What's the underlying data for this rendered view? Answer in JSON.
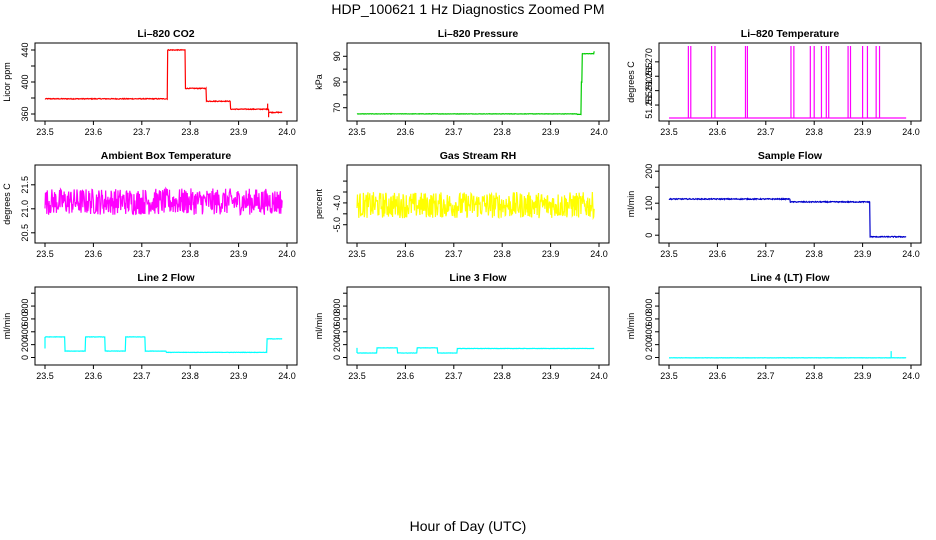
{
  "page": {
    "title": "HDP_100621  1 Hz Diagnostics Zoomed PM",
    "xlabel": "Hour of Day (UTC)"
  },
  "chart_data": [
    {
      "id": "co2",
      "type": "line",
      "title": "Li–820 CO2",
      "ylabel": "Licor ppm",
      "color": "#ff0000",
      "xlim": [
        23.5,
        24.0
      ],
      "ylim": [
        355,
        445
      ],
      "xticks": [
        23.5,
        23.6,
        23.7,
        23.8,
        23.9,
        24.0
      ],
      "xtick_labels": [
        "23.5",
        "23.6",
        "23.7",
        "23.8",
        "23.9",
        "24.0"
      ],
      "yticks": [
        360,
        400,
        440
      ],
      "ytick_labels": [
        "360",
        "400",
        "440"
      ],
      "minor_yticks": [
        380,
        420
      ],
      "noise": 1.0,
      "steps": [
        [
          23.5,
          379
        ],
        [
          23.753,
          440
        ],
        [
          23.79,
          392
        ],
        [
          23.833,
          376
        ],
        [
          23.883,
          366
        ],
        [
          23.962,
          362
        ],
        [
          23.99,
          362
        ]
      ],
      "spikes": [
        [
          23.96,
          373
        ],
        [
          23.962,
          356
        ]
      ]
    },
    {
      "id": "pressure",
      "type": "line",
      "title": "Li–820 Pressure",
      "ylabel": "kPa",
      "color": "#00cc00",
      "xlim": [
        23.5,
        24.0
      ],
      "ylim": [
        66,
        94
      ],
      "xticks": [
        23.5,
        23.6,
        23.7,
        23.8,
        23.9,
        24.0
      ],
      "xtick_labels": [
        "23.5",
        "23.6",
        "23.7",
        "23.8",
        "23.9",
        "24.0"
      ],
      "yticks": [
        70,
        80,
        90
      ],
      "ytick_labels": [
        "70",
        "80",
        "90"
      ],
      "minor_yticks": [
        75,
        85
      ],
      "noise": 0.15,
      "steps": [
        [
          23.5,
          67.6
        ],
        [
          23.955,
          67.4
        ],
        [
          23.963,
          80
        ],
        [
          23.965,
          91
        ],
        [
          23.99,
          92
        ]
      ],
      "spikes": []
    },
    {
      "id": "licor_temp",
      "type": "line",
      "title": "Li–820 Temperature",
      "ylabel": "degrees C",
      "color": "#ff00ff",
      "xlim": [
        23.5,
        24.0
      ],
      "ylim": [
        51.2505,
        51.2755
      ],
      "xticks": [
        23.5,
        23.6,
        23.7,
        23.8,
        23.9,
        24.0
      ],
      "xtick_labels": [
        "23.5",
        "23.6",
        "23.7",
        "23.8",
        "23.9",
        "24.0"
      ],
      "yticks": [
        51.255,
        51.26,
        51.265,
        51.27
      ],
      "ytick_labels": [
        "51.255",
        "51.260",
        "51.265",
        "51.270"
      ],
      "minor_yticks": [],
      "noise": 0,
      "baseline": 51.2505,
      "spike_top": 51.2755,
      "spike_times": [
        23.54,
        23.545,
        23.588,
        23.595,
        23.658,
        23.662,
        23.752,
        23.758,
        23.792,
        23.8,
        23.815,
        23.825,
        23.83,
        23.87,
        23.875,
        23.9,
        23.91,
        23.928,
        23.935
      ],
      "steps": [],
      "spikes": []
    },
    {
      "id": "box_temp",
      "type": "line",
      "title": "Ambient Box Temperature",
      "ylabel": "degrees C",
      "color": "#ff00ff",
      "xlim": [
        23.5,
        24.0
      ],
      "ylim": [
        20.35,
        21.85
      ],
      "xticks": [
        23.5,
        23.6,
        23.7,
        23.8,
        23.9,
        24.0
      ],
      "xtick_labels": [
        "23.5",
        "23.6",
        "23.7",
        "23.8",
        "23.9",
        "24.0"
      ],
      "yticks": [
        20.5,
        21.0,
        21.5
      ],
      "ytick_labels": [
        "20.5",
        "21.0",
        "21.5"
      ],
      "minor_yticks": [],
      "noise": 0.55,
      "steps": [
        [
          23.5,
          21.15
        ],
        [
          23.99,
          21.15
        ]
      ],
      "spikes": []
    },
    {
      "id": "rh",
      "type": "line",
      "title": "Gas Stream RH",
      "ylabel": "percent",
      "color": "#ffff00",
      "xlim": [
        23.5,
        24.0
      ],
      "ylim": [
        -5.7,
        -2.4
      ],
      "xticks": [
        23.5,
        23.6,
        23.7,
        23.8,
        23.9,
        24.0
      ],
      "xtick_labels": [
        "23.5",
        "23.6",
        "23.7",
        "23.8",
        "23.9",
        "24.0"
      ],
      "yticks": [
        -5,
        -4
      ],
      "ytick_labels": [
        "-5.0",
        "-4.0"
      ],
      "minor_yticks": [
        -4.5,
        -3.5,
        -3.0
      ],
      "noise": 1.2,
      "steps": [
        [
          23.5,
          -4.1
        ],
        [
          23.99,
          -4.1
        ]
      ],
      "spikes": []
    },
    {
      "id": "sample_flow",
      "type": "line",
      "title": "Sample Flow",
      "ylabel": "ml/min",
      "color": "#0000cc",
      "xlim": [
        23.5,
        24.0
      ],
      "ylim": [
        -15,
        210
      ],
      "xticks": [
        23.5,
        23.6,
        23.7,
        23.8,
        23.9,
        24.0
      ],
      "xtick_labels": [
        "23.5",
        "23.6",
        "23.7",
        "23.8",
        "23.9",
        "24.0"
      ],
      "yticks": [
        0,
        100,
        200
      ],
      "ytick_labels": [
        "0",
        "100",
        "200"
      ],
      "minor_yticks": [
        50,
        150
      ],
      "noise": 3,
      "steps": [
        [
          23.5,
          113
        ],
        [
          23.75,
          104
        ],
        [
          23.915,
          -5
        ],
        [
          23.99,
          -5
        ]
      ],
      "spikes": []
    },
    {
      "id": "line2_flow",
      "type": "line",
      "title": "Line 2 Flow",
      "ylabel": "ml/min",
      "color": "#00ffff",
      "xlim": [
        23.5,
        24.0
      ],
      "ylim": [
        -70,
        1050
      ],
      "xticks": [
        23.5,
        23.6,
        23.7,
        23.8,
        23.9,
        24.0
      ],
      "xtick_labels": [
        "23.5",
        "23.6",
        "23.7",
        "23.8",
        "23.9",
        "24.0"
      ],
      "yticks": [
        0,
        200,
        400,
        600,
        800
      ],
      "ytick_labels": [
        "0",
        "200",
        "400",
        "600",
        "800"
      ],
      "minor_yticks": [
        1000
      ],
      "noise": 5,
      "steps": [
        [
          23.5,
          320
        ],
        [
          23.541,
          100
        ],
        [
          23.583,
          320
        ],
        [
          23.624,
          100
        ],
        [
          23.666,
          320
        ],
        [
          23.707,
          100
        ],
        [
          23.75,
          80
        ],
        [
          23.958,
          290
        ],
        [
          23.99,
          290
        ]
      ],
      "spikes": [
        [
          23.5,
          140
        ]
      ]
    },
    {
      "id": "line3_flow",
      "type": "line",
      "title": "Line 3 Flow",
      "ylabel": "ml/min",
      "color": "#00ffff",
      "xlim": [
        23.5,
        24.0
      ],
      "ylim": [
        -70,
        1050
      ],
      "xticks": [
        23.5,
        23.6,
        23.7,
        23.8,
        23.9,
        24.0
      ],
      "xtick_labels": [
        "23.5",
        "23.6",
        "23.7",
        "23.8",
        "23.9",
        "24.0"
      ],
      "yticks": [
        0,
        200,
        400,
        600,
        800
      ],
      "ytick_labels": [
        "0",
        "200",
        "400",
        "600",
        "800"
      ],
      "minor_yticks": [
        1000
      ],
      "noise": 4,
      "steps": [
        [
          23.5,
          70
        ],
        [
          23.541,
          150
        ],
        [
          23.583,
          70
        ],
        [
          23.624,
          150
        ],
        [
          23.666,
          70
        ],
        [
          23.707,
          140
        ],
        [
          23.99,
          140
        ]
      ],
      "spikes": [
        [
          23.5,
          150
        ]
      ]
    },
    {
      "id": "line4_flow",
      "type": "line",
      "title": "Line 4 (LT) Flow",
      "ylabel": "ml/min",
      "color": "#00ffff",
      "xlim": [
        23.5,
        24.0
      ],
      "ylim": [
        -70,
        1050
      ],
      "xticks": [
        23.5,
        23.6,
        23.7,
        23.8,
        23.9,
        24.0
      ],
      "xtick_labels": [
        "23.5",
        "23.6",
        "23.7",
        "23.8",
        "23.9",
        "24.0"
      ],
      "yticks": [
        0,
        200,
        400,
        600,
        800
      ],
      "ytick_labels": [
        "0",
        "200",
        "400",
        "600",
        "800"
      ],
      "minor_yticks": [
        1000
      ],
      "noise": 3,
      "steps": [
        [
          23.5,
          -5
        ],
        [
          23.99,
          -5
        ]
      ],
      "spikes": [
        [
          23.959,
          100
        ],
        [
          23.962,
          -5
        ]
      ]
    }
  ]
}
